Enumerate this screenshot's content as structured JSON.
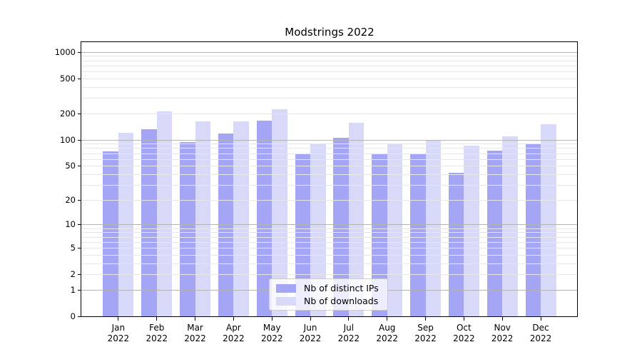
{
  "chart_data": {
    "type": "bar",
    "title": "Modstrings 2022",
    "categories": [
      "Jan",
      "Feb",
      "Mar",
      "Apr",
      "May",
      "Jun",
      "Jul",
      "Aug",
      "Sep",
      "Oct",
      "Nov",
      "Dec"
    ],
    "category_year": "2022",
    "series": [
      {
        "name": "Nb of distinct IPs",
        "color": "#a5a5f5",
        "values": [
          74,
          134,
          94,
          118,
          167,
          70,
          107,
          70,
          69,
          42,
          76,
          91
        ]
      },
      {
        "name": "Nb of downloads",
        "color": "#d8d8f8",
        "values": [
          122,
          214,
          165,
          165,
          226,
          89,
          157,
          90,
          100,
          86,
          110,
          151
        ]
      }
    ],
    "yaxis": {
      "scale": "symlog (position proportional to log10(1+value))",
      "ylim": [
        0,
        1320
      ],
      "labeled_ticks": [
        0,
        1,
        2,
        5,
        10,
        20,
        50,
        100,
        200,
        500,
        1000
      ],
      "major_gridlines": [
        1,
        10,
        100,
        1000
      ],
      "minor_gridlines": [
        2,
        3,
        4,
        5,
        6,
        7,
        8,
        9,
        20,
        30,
        40,
        50,
        60,
        70,
        80,
        90,
        200,
        300,
        400,
        500,
        600,
        700,
        800,
        900
      ]
    },
    "xaxis": {
      "tick_label_format": "month newline year"
    },
    "legend": {
      "position": "lower center inside plot"
    },
    "grid": true,
    "colors": {
      "major_gridline": "#b3b3b3",
      "minor_gridline": "#e7e7e7",
      "spine": "#000000",
      "background": "#ffffff"
    }
  }
}
